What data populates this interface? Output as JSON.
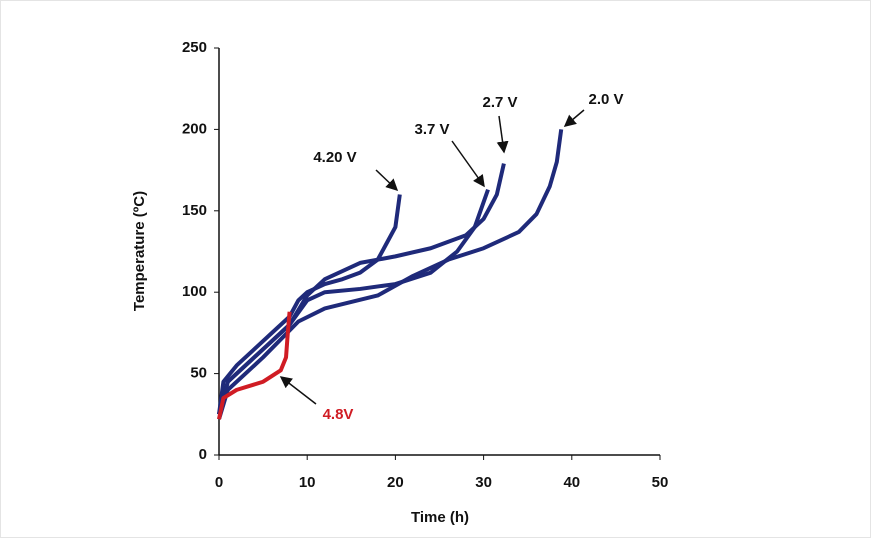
{
  "chart_data": {
    "type": "line",
    "x_label": "Time (h)",
    "y_label": "Temperature (ºC)",
    "xlim": [
      0,
      50
    ],
    "xticks": [
      0,
      10,
      20,
      30,
      40,
      50
    ],
    "ylim": [
      0,
      250
    ],
    "yticks": [
      0,
      50,
      100,
      150,
      200,
      250
    ],
    "series": [
      {
        "name": "4.20 V",
        "color": "#1f2a7a",
        "x": [
          0,
          0.5,
          2,
          4,
          6,
          8,
          9,
          10,
          12,
          14,
          16,
          18,
          19,
          20,
          20.5
        ],
        "values": [
          25,
          45,
          55,
          65,
          75,
          85,
          95,
          100,
          105,
          108,
          112,
          120,
          130,
          140,
          160
        ]
      },
      {
        "name": "3.7 V",
        "color": "#1f2a7a",
        "x": [
          0,
          1,
          3,
          6,
          8,
          10,
          12,
          16,
          20,
          24,
          27,
          29,
          30.5
        ],
        "values": [
          25,
          45,
          55,
          70,
          80,
          95,
          100,
          102,
          105,
          112,
          125,
          140,
          163
        ]
      },
      {
        "name": "2.7 V",
        "color": "#1f2a7a",
        "x": [
          0,
          1,
          4,
          8,
          10,
          12,
          16,
          20,
          24,
          28,
          30,
          31.5,
          32.3
        ],
        "values": [
          25,
          45,
          60,
          80,
          98,
          108,
          118,
          122,
          127,
          135,
          145,
          160,
          179
        ]
      },
      {
        "name": "2.0 V",
        "color": "#1f2a7a",
        "x": [
          0,
          1,
          5,
          9,
          12,
          18,
          22,
          26,
          30,
          34,
          36,
          37.5,
          38.3,
          38.8
        ],
        "values": [
          22,
          40,
          60,
          82,
          90,
          98,
          110,
          120,
          127,
          137,
          148,
          165,
          180,
          200
        ]
      },
      {
        "name": "4.8V",
        "color": "#d01c24",
        "x": [
          0,
          0.5,
          2,
          5,
          7,
          7.6,
          7.8,
          8
        ],
        "values": [
          22,
          35,
          40,
          45,
          52,
          60,
          75,
          88
        ]
      }
    ]
  }
}
